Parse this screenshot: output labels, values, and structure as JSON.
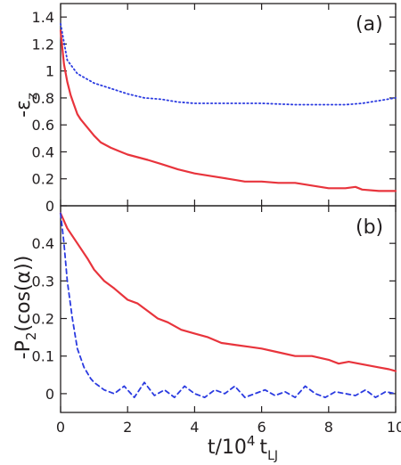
{
  "chart_data": [
    {
      "type": "line",
      "panel_label": "(a)",
      "ylabel": "-ε",
      "ylabel_subscript": "z",
      "xlim": [
        0,
        10
      ],
      "ylim": [
        0,
        1.5
      ],
      "yticks": [
        0,
        0.2,
        0.4,
        0.6,
        0.8,
        1,
        1.2,
        1.4
      ],
      "ytick_labels": [
        "0",
        "0.2",
        "0.4",
        "0.6",
        "0.8",
        "1",
        "1.2",
        "1.4"
      ],
      "grid": false,
      "legend": "none",
      "series": [
        {
          "color": "#e8343c",
          "style": "solid",
          "x": [
            0,
            0.1,
            0.2,
            0.3,
            0.4,
            0.5,
            0.6,
            0.8,
            1.0,
            1.2,
            1.5,
            1.8,
            2.0,
            2.3,
            2.6,
            3.0,
            3.5,
            4.0,
            4.5,
            5.0,
            5.5,
            6.0,
            6.5,
            7.0,
            7.5,
            8.0,
            8.5,
            8.8,
            9.0,
            9.5,
            10.0
          ],
          "y": [
            1.3,
            1.05,
            0.92,
            0.82,
            0.75,
            0.68,
            0.64,
            0.58,
            0.52,
            0.47,
            0.43,
            0.4,
            0.38,
            0.36,
            0.34,
            0.31,
            0.27,
            0.24,
            0.22,
            0.2,
            0.18,
            0.18,
            0.17,
            0.17,
            0.15,
            0.13,
            0.13,
            0.14,
            0.12,
            0.11,
            0.11
          ]
        },
        {
          "color": "#2b3be0",
          "style": "dotted",
          "x": [
            0,
            0.2,
            0.5,
            1.0,
            1.5,
            2.0,
            2.5,
            3.0,
            3.5,
            4.0,
            5.0,
            6.0,
            7.0,
            8.0,
            8.5,
            9.0,
            9.5,
            10.0
          ],
          "y": [
            1.35,
            1.08,
            0.98,
            0.91,
            0.87,
            0.83,
            0.8,
            0.79,
            0.77,
            0.76,
            0.76,
            0.76,
            0.75,
            0.75,
            0.75,
            0.76,
            0.78,
            0.8
          ]
        }
      ]
    },
    {
      "type": "line",
      "panel_label": "(b)",
      "ylabel": "-P",
      "ylabel_subscript": "2",
      "ylabel_suffix": "(cos(α))",
      "xlabel": "t/10",
      "xlabel_sup": "4",
      "xlabel_unit": "t",
      "xlabel_sub": "LJ",
      "xlim": [
        0,
        10
      ],
      "ylim": [
        -0.05,
        0.5
      ],
      "xticks": [
        0,
        2,
        4,
        6,
        8,
        10
      ],
      "xtick_labels": [
        "0",
        "2",
        "4",
        "6",
        "8",
        "10"
      ],
      "yticks": [
        0,
        0.1,
        0.2,
        0.3,
        0.4
      ],
      "ytick_labels": [
        "0",
        "0.1",
        "0.2",
        "0.3",
        "0.4"
      ],
      "grid": false,
      "legend": "none",
      "series": [
        {
          "color": "#e8343c",
          "style": "solid",
          "x": [
            0,
            0.2,
            0.5,
            0.8,
            1.0,
            1.3,
            1.6,
            2.0,
            2.3,
            2.6,
            2.9,
            3.2,
            3.6,
            4.0,
            4.4,
            4.8,
            5.2,
            5.6,
            6.0,
            6.5,
            7.0,
            7.5,
            8.0,
            8.3,
            8.6,
            8.9,
            9.2,
            9.5,
            9.8,
            10.0
          ],
          "y": [
            0.48,
            0.44,
            0.4,
            0.36,
            0.33,
            0.3,
            0.28,
            0.25,
            0.24,
            0.22,
            0.2,
            0.19,
            0.17,
            0.16,
            0.15,
            0.135,
            0.13,
            0.125,
            0.12,
            0.11,
            0.1,
            0.1,
            0.09,
            0.08,
            0.085,
            0.08,
            0.075,
            0.07,
            0.065,
            0.06
          ]
        },
        {
          "color": "#2b3be0",
          "style": "dashed",
          "x": [
            0,
            0.1,
            0.2,
            0.35,
            0.5,
            0.7,
            0.9,
            1.0,
            1.3,
            1.6,
            1.9,
            2.2,
            2.5,
            2.8,
            3.1,
            3.4,
            3.7,
            4.0,
            4.3,
            4.6,
            4.9,
            5.2,
            5.5,
            5.8,
            6.1,
            6.4,
            6.7,
            7.0,
            7.3,
            7.6,
            7.9,
            8.2,
            8.5,
            8.8,
            9.1,
            9.4,
            9.7,
            10.0
          ],
          "y": [
            0.48,
            0.4,
            0.3,
            0.2,
            0.12,
            0.07,
            0.04,
            0.03,
            0.01,
            0.0,
            0.02,
            -0.01,
            0.03,
            -0.005,
            0.01,
            -0.01,
            0.02,
            0.0,
            -0.01,
            0.01,
            0.0,
            0.02,
            -0.01,
            0.0,
            0.01,
            -0.005,
            0.005,
            -0.01,
            0.02,
            0.0,
            -0.01,
            0.005,
            0.0,
            -0.005,
            0.01,
            -0.01,
            0.005,
            0.0
          ]
        }
      ]
    }
  ]
}
